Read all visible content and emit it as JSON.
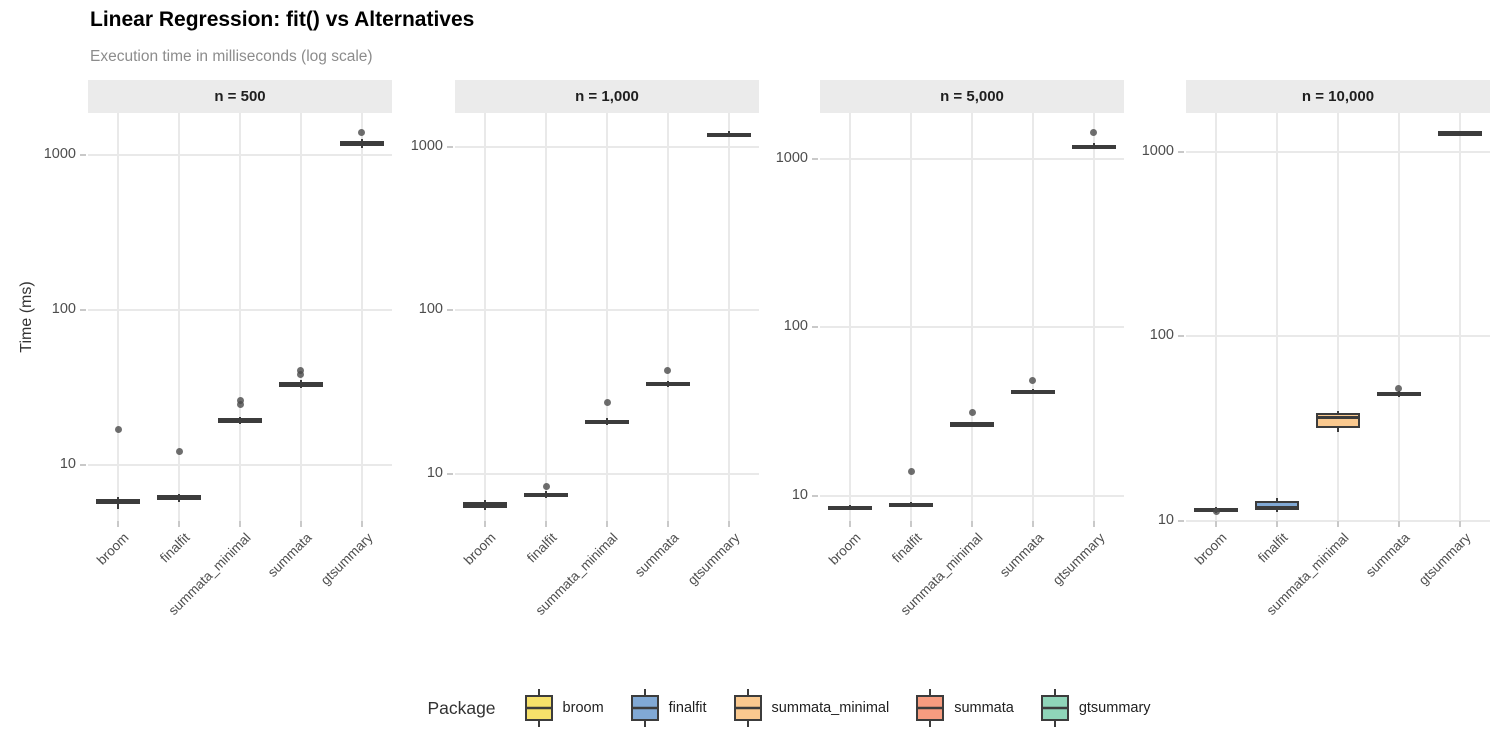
{
  "header": {
    "title": "Linear Regression: fit() vs Alternatives",
    "subtitle": "Execution time in milliseconds (log scale)"
  },
  "y_axis_title": "Time (ms)",
  "legend": {
    "title": "Package",
    "items": [
      "broom",
      "finalfit",
      "summata_minimal",
      "summata",
      "gtsummary"
    ]
  },
  "palette": {
    "broom": "#F6E16B",
    "finalfit": "#81A9D5",
    "summata_minimal": "#FAC98F",
    "summata": "#F79C80",
    "gtsummary": "#8FD5B9"
  },
  "colors": {
    "box_border": "#3C3C3C",
    "outlier": "#4A4A4A",
    "gridline": "#E9E9E9",
    "strip_bg": "#EBEBEB",
    "axis_text": "#4D4D4D"
  },
  "chart_data": {
    "type": "boxplot",
    "title": "Linear Regression: fit() vs Alternatives",
    "subtitle": "Execution time in milliseconds (log scale)",
    "ylabel": "Time (ms)",
    "y_scale": "log10",
    "y_ticks": [
      10,
      100,
      1000
    ],
    "grid": "major-only",
    "legend_position": "bottom",
    "categories": [
      "broom",
      "finalfit",
      "summata_minimal",
      "summata",
      "gtsummary"
    ],
    "facets": [
      {
        "label": "n = 500",
        "ylog_domain": [
          0.64,
          3.27
        ],
        "boxes": [
          {
            "package": "broom",
            "min": 5.2,
            "q1": 5.6,
            "med": 5.8,
            "q3": 6.05,
            "max": 6.2,
            "outliers": [
              17
            ]
          },
          {
            "package": "finalfit",
            "min": 5.8,
            "q1": 5.95,
            "med": 6.1,
            "q3": 6.4,
            "max": 6.55,
            "outliers": [
              12.2
            ]
          },
          {
            "package": "summata_minimal",
            "min": 18.3,
            "q1": 18.8,
            "med": 19.4,
            "q3": 20.0,
            "max": 20.5,
            "outliers": [
              24.5,
              26
            ]
          },
          {
            "package": "summata",
            "min": 31.2,
            "q1": 32.0,
            "med": 33.2,
            "q3": 34.5,
            "max": 35.2,
            "outliers": [
              38.5,
              41
            ]
          },
          {
            "package": "gtsummary",
            "min": 1110,
            "q1": 1145,
            "med": 1185,
            "q3": 1230,
            "max": 1265,
            "outliers": [
              1390
            ]
          }
        ]
      },
      {
        "label": "n = 1,000",
        "ylog_domain": [
          0.71,
          3.21
        ],
        "boxes": [
          {
            "package": "broom",
            "min": 6.0,
            "q1": 6.2,
            "med": 6.45,
            "q3": 6.7,
            "max": 6.9,
            "outliers": []
          },
          {
            "package": "finalfit",
            "min": 7.05,
            "q1": 7.2,
            "med": 7.4,
            "q3": 7.6,
            "max": 7.8,
            "outliers": [
              8.3
            ]
          },
          {
            "package": "summata_minimal",
            "min": 19.9,
            "q1": 20.3,
            "med": 20.8,
            "q3": 21.4,
            "max": 21.9,
            "outliers": [
              27.3
            ]
          },
          {
            "package": "summata",
            "min": 34.2,
            "q1": 34.8,
            "med": 35.6,
            "q3": 36.5,
            "max": 37.2,
            "outliers": [
              43
            ]
          },
          {
            "package": "gtsummary",
            "min": 1155,
            "q1": 1180,
            "med": 1205,
            "q3": 1230,
            "max": 1250,
            "outliers": []
          }
        ]
      },
      {
        "label": "n = 5,000",
        "ylog_domain": [
          0.85,
          3.27
        ],
        "boxes": [
          {
            "package": "broom",
            "min": 8.2,
            "q1": 8.35,
            "med": 8.5,
            "q3": 8.65,
            "max": 8.8,
            "outliers": []
          },
          {
            "package": "finalfit",
            "min": 8.6,
            "q1": 8.72,
            "med": 8.85,
            "q3": 9.0,
            "max": 9.15,
            "outliers": [
              13.9
            ]
          },
          {
            "package": "summata_minimal",
            "min": 25.7,
            "q1": 26.1,
            "med": 26.5,
            "q3": 27.0,
            "max": 27.5,
            "outliers": [
              31.2
            ]
          },
          {
            "package": "summata",
            "min": 40.2,
            "q1": 40.8,
            "med": 41.6,
            "q3": 42.4,
            "max": 43.1,
            "outliers": [
              48.4
            ]
          },
          {
            "package": "gtsummary",
            "min": 1135,
            "q1": 1158,
            "med": 1180,
            "q3": 1205,
            "max": 1228,
            "outliers": [
              1430
            ]
          }
        ]
      },
      {
        "label": "n = 10,000",
        "ylog_domain": [
          1.0,
          3.21
        ],
        "boxes": [
          {
            "package": "broom",
            "min": 11.1,
            "q1": 11.3,
            "med": 11.5,
            "q3": 11.75,
            "max": 11.95,
            "outliers": [
              11.2
            ]
          },
          {
            "package": "finalfit",
            "min": 11.25,
            "q1": 11.45,
            "med": 11.95,
            "q3": 12.8,
            "max": 13.25,
            "outliers": []
          },
          {
            "package": "summata_minimal",
            "min": 30.2,
            "q1": 31.8,
            "med": 36.8,
            "q3": 38.5,
            "max": 39.3,
            "outliers": []
          },
          {
            "package": "summata",
            "min": 46.8,
            "q1": 47.5,
            "med": 48.8,
            "q3": 49.9,
            "max": 50.5,
            "outliers": [
              52.3
            ]
          },
          {
            "package": "gtsummary",
            "min": 1225,
            "q1": 1245,
            "med": 1262,
            "q3": 1282,
            "max": 1300,
            "outliers": []
          }
        ]
      }
    ]
  }
}
